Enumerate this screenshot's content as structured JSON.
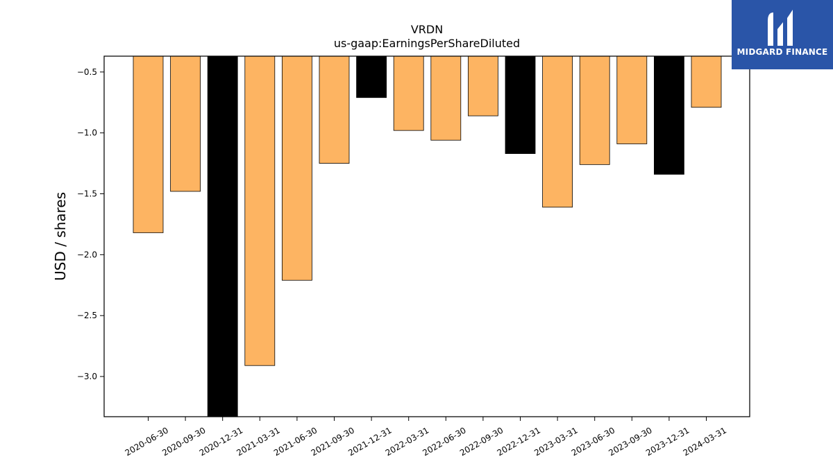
{
  "brand": {
    "name": "MIDGARD FINANCE",
    "logo_color": "#2a55a8"
  },
  "chart_data": {
    "type": "bar",
    "title": "VRDN",
    "subtitle": "us-gaap:EarningsPerShareDiluted",
    "xlabel": "",
    "ylabel": "USD / shares",
    "ylim": [
      -3.33,
      -0.37
    ],
    "yticks": [
      -0.5,
      -1.0,
      -1.5,
      -2.0,
      -2.5,
      -3.0
    ],
    "ytick_labels": [
      "−0.5",
      "−1.0",
      "−1.5",
      "−2.0",
      "−2.5",
      "−3.0"
    ],
    "categories": [
      "2020-06-30",
      "2020-09-30",
      "2020-12-31",
      "2021-03-31",
      "2021-06-30",
      "2021-09-30",
      "2021-12-31",
      "2022-03-31",
      "2022-06-30",
      "2022-09-30",
      "2022-12-31",
      "2023-03-31",
      "2023-06-30",
      "2023-09-30",
      "2023-12-31",
      "2024-03-31"
    ],
    "values": [
      -1.82,
      -1.48,
      -3.4,
      -2.91,
      -2.21,
      -1.25,
      -0.71,
      -0.98,
      -1.06,
      -0.86,
      -1.17,
      -1.61,
      -1.26,
      -1.09,
      -1.34,
      -0.79
    ],
    "bar_colors": [
      "#fdb462",
      "#fdb462",
      "#000000",
      "#fdb462",
      "#fdb462",
      "#fdb462",
      "#000000",
      "#fdb462",
      "#fdb462",
      "#fdb462",
      "#000000",
      "#fdb462",
      "#fdb462",
      "#fdb462",
      "#000000",
      "#fdb462"
    ],
    "grid": false
  }
}
